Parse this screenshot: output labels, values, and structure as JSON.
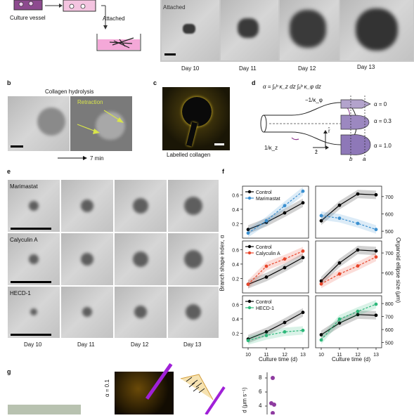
{
  "panel_a": {
    "culture_vessel": "Culture vessel",
    "attached_arrow": "Attached",
    "attached_header": "Attached",
    "days": [
      "Day 10",
      "Day 11",
      "Day 12",
      "Day 13"
    ]
  },
  "panel_b": {
    "letter": "b",
    "title": "Collagen hydrolysis",
    "retraction": "Retraction",
    "time": "7 min"
  },
  "panel_c": {
    "letter": "c",
    "caption": "Labelled collagen"
  },
  "panel_d": {
    "letter": "d",
    "formula": "α = ∫ₐᵇ κ_z dz ∫ₐᵇ κ_φ dz",
    "kphi": "−1/κ_φ",
    "kz": "1/κ_z",
    "axis_r": "r̂",
    "axis_z": "ẑ",
    "alpha_labels": [
      "α = 0",
      "α = 0.3",
      "α = 1.0"
    ],
    "b": "b",
    "a": "a"
  },
  "panel_e": {
    "letter": "e",
    "rows": [
      "Marimastat",
      "Calyculin A",
      "HECD-1"
    ],
    "days": [
      "Day 10",
      "Day 11",
      "Day 12",
      "Day 13"
    ]
  },
  "panel_f": {
    "letter": "f",
    "ylabel_left": "Branch shape index, α",
    "ylabel_right": "Organoid ellipse size (μm)",
    "xlabel": "Culture time (d)",
    "x_ticks": [
      "10",
      "11",
      "12",
      "13"
    ],
    "left_ticks": [
      "0.2",
      "0.4",
      "0.6"
    ],
    "right_ticks_row1": [
      "500",
      "600",
      "700"
    ],
    "right_ticks_row2": [
      "600",
      "700"
    ],
    "right_ticks_row3": [
      "500",
      "600",
      "700",
      "800"
    ],
    "colors": {
      "control": "#000000",
      "marimastat": "#3a8fd0",
      "calyculin": "#e8452a",
      "hecd": "#2db87a"
    }
  },
  "panel_g": {
    "letter": "g",
    "alpha": "α = 0.1",
    "ylabel": "d (μm s⁻¹)",
    "y_ticks": [
      "8",
      "6",
      "4"
    ]
  },
  "chart_data": [
    {
      "type": "line",
      "panel": "f-left-1",
      "x": [
        10,
        11,
        12,
        13
      ],
      "xlabel": "Culture time (d)",
      "ylabel": "Branch shape index, α",
      "ylim": [
        0.0,
        0.72
      ],
      "series": [
        {
          "name": "Control",
          "values": [
            0.12,
            0.22,
            0.35,
            0.49
          ]
        },
        {
          "name": "Marimastat",
          "values": [
            0.07,
            0.24,
            0.45,
            0.65
          ]
        }
      ]
    },
    {
      "type": "line",
      "panel": "f-right-1",
      "x": [
        10,
        11,
        12,
        13
      ],
      "ylabel": "Organoid ellipse size (μm)",
      "ylim": [
        460,
        760
      ],
      "series": [
        {
          "name": "Control",
          "values": [
            560,
            650,
            715,
            710
          ]
        },
        {
          "name": "Marimastat",
          "values": [
            590,
            575,
            545,
            510
          ]
        }
      ]
    },
    {
      "type": "line",
      "panel": "f-left-2",
      "x": [
        10,
        11,
        12,
        13
      ],
      "ylim": [
        0.0,
        0.72
      ],
      "series": [
        {
          "name": "Control",
          "values": [
            0.12,
            0.22,
            0.35,
            0.49
          ]
        },
        {
          "name": "Calyculin A",
          "values": [
            0.12,
            0.37,
            0.47,
            0.58
          ]
        }
      ]
    },
    {
      "type": "line",
      "panel": "f-right-2",
      "x": [
        10,
        11,
        12,
        13
      ],
      "ylim": [
        500,
        760
      ],
      "series": [
        {
          "name": "Control",
          "values": [
            560,
            650,
            715,
            710
          ]
        },
        {
          "name": "Calyculin A",
          "values": [
            545,
            595,
            635,
            680
          ]
        }
      ]
    },
    {
      "type": "line",
      "panel": "f-left-3",
      "x": [
        10,
        11,
        12,
        13
      ],
      "ylim": [
        0.0,
        0.72
      ],
      "series": [
        {
          "name": "Control",
          "values": [
            0.12,
            0.22,
            0.35,
            0.49
          ]
        },
        {
          "name": "HECD-1",
          "values": [
            0.1,
            0.17,
            0.22,
            0.24
          ]
        }
      ]
    },
    {
      "type": "line",
      "panel": "f-right-3",
      "x": [
        10,
        11,
        12,
        13
      ],
      "ylim": [
        460,
        860
      ],
      "series": [
        {
          "name": "Control",
          "values": [
            560,
            650,
            715,
            710
          ]
        },
        {
          "name": "HECD-1",
          "values": [
            520,
            680,
            740,
            795
          ]
        }
      ]
    }
  ]
}
